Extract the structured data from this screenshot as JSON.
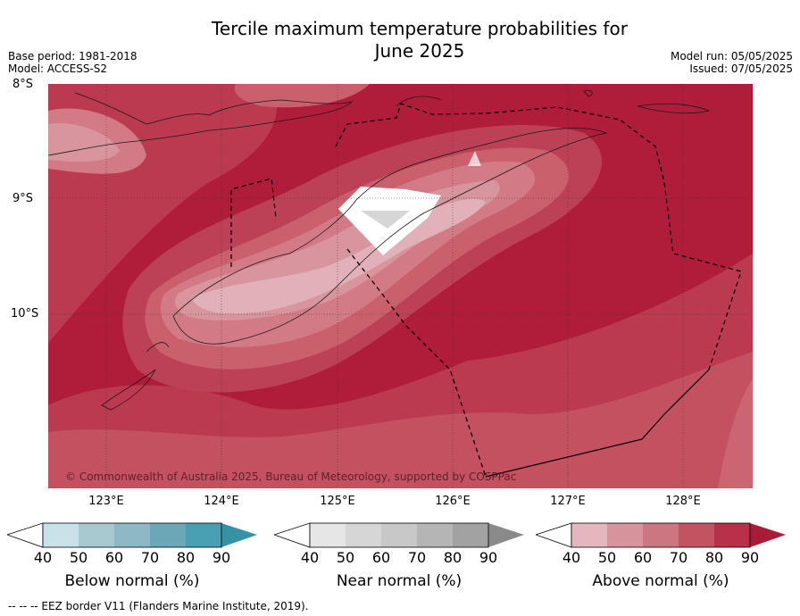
{
  "title_line1": "Tercile maximum temperature probabilities for",
  "title_line2": "June 2025",
  "base_period": "Base period: 1981-2018",
  "model": "Model: ACCESS-S2",
  "model_run": "Model run: 05/05/2025",
  "issued": "Issued: 07/05/2025",
  "lat_labels": [
    "8°S",
    "9°S",
    "10°S"
  ],
  "lon_labels": [
    "123°E",
    "124°E",
    "125°E",
    "126°E",
    "127°E",
    "128°E"
  ],
  "copyright": "© Commonwealth of Australia 2025, Bureau of Meteorology, supported by COSPPac",
  "colorbars": [
    {
      "label": "Below normal (%)",
      "ticks": [
        "40",
        "50",
        "60",
        "70",
        "80",
        "90"
      ],
      "colors": [
        "#c9e2ea",
        "#a9c9d0",
        "#8cb9c4",
        "#6aa8b8",
        "#49a0b2",
        "#3592a6"
      ]
    },
    {
      "label": "Near normal (%)",
      "ticks": [
        "40",
        "50",
        "60",
        "70",
        "80",
        "90"
      ],
      "colors": [
        "#e6e6e6",
        "#d6d6d6",
        "#c8c8c8",
        "#b5b5b5",
        "#a2a2a2",
        "#8a8a8a"
      ]
    },
    {
      "label": "Above normal (%)",
      "ticks": [
        "40",
        "50",
        "60",
        "70",
        "80",
        "90"
      ],
      "colors": [
        "#e4b7bf",
        "#d7939c",
        "#cc7681",
        "#c25361",
        "#b83148",
        "#a91b36"
      ]
    }
  ],
  "footer": "--  --  -- EEZ border V11 (Flanders Marine Institute, 2019)."
}
